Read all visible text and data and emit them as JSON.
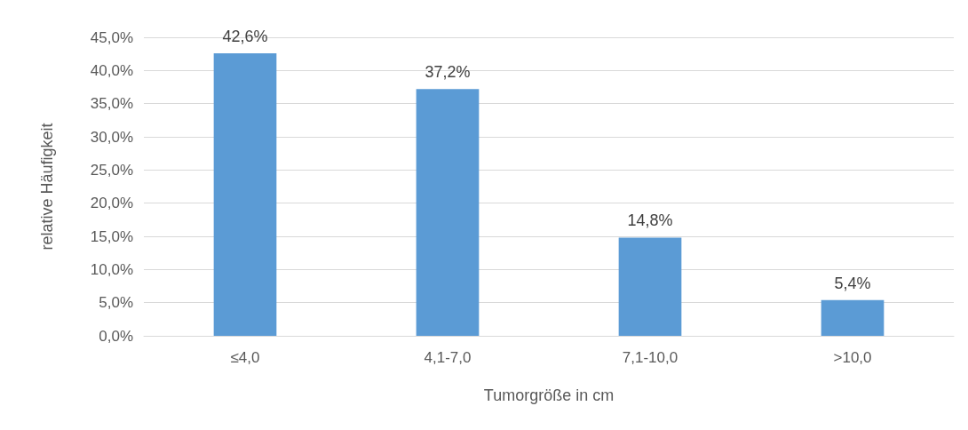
{
  "chart_data": {
    "type": "bar",
    "xlabel": "Tumorgröße in cm",
    "ylabel": "relative Häufigkeit",
    "categories": [
      "≤4,0",
      "4,1-7,0",
      "7,1-10,0",
      ">10,0"
    ],
    "values": [
      42.6,
      37.2,
      14.8,
      5.4
    ],
    "value_labels": [
      "42,6%",
      "37,2%",
      "14,8%",
      "5,4%"
    ],
    "color": "#5b9bd5",
    "ylim": [
      0,
      45
    ],
    "yticks": [
      {
        "value": 0,
        "label": "0,0%"
      },
      {
        "value": 5,
        "label": "5,0%"
      },
      {
        "value": 10,
        "label": "10,0%"
      },
      {
        "value": 15,
        "label": "15,0%"
      },
      {
        "value": 20,
        "label": "20,0%"
      },
      {
        "value": 25,
        "label": "25,0%"
      },
      {
        "value": 30,
        "label": "30,0%"
      },
      {
        "value": 35,
        "label": "35,0%"
      },
      {
        "value": 40,
        "label": "40,0%"
      },
      {
        "value": 45,
        "label": "45,0%"
      }
    ],
    "grid": "y"
  }
}
